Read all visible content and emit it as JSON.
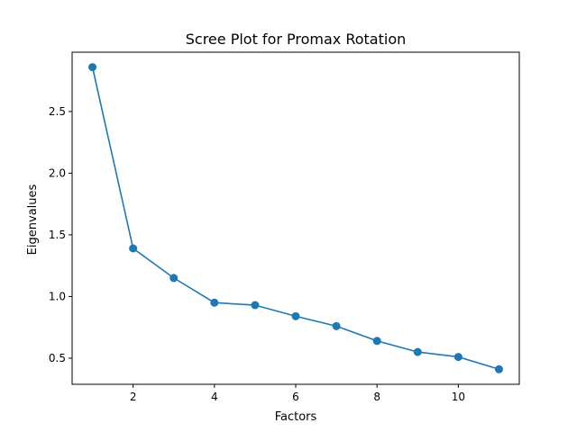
{
  "chart_data": {
    "type": "line",
    "title": "Scree Plot for Promax Rotation",
    "xlabel": "Factors",
    "ylabel": "Eigenvalues",
    "x": [
      1,
      2,
      3,
      4,
      5,
      6,
      7,
      8,
      9,
      10,
      11
    ],
    "values": [
      2.86,
      1.39,
      1.15,
      0.95,
      0.93,
      0.84,
      0.76,
      0.64,
      0.55,
      0.51,
      0.41
    ],
    "xlim": [
      0.5,
      11.5
    ],
    "ylim": [
      0.288,
      2.981
    ],
    "xticks": [
      2,
      4,
      6,
      8,
      10
    ],
    "yticks": [
      0.5,
      1.0,
      1.5,
      2.0,
      2.5
    ],
    "xtick_labels": [
      "2",
      "4",
      "6",
      "8",
      "10"
    ],
    "ytick_labels": [
      "0.5",
      "1.0",
      "1.5",
      "2.0",
      "2.5"
    ],
    "grid": false,
    "line_color": "#1f77b4",
    "marker": "circle"
  }
}
